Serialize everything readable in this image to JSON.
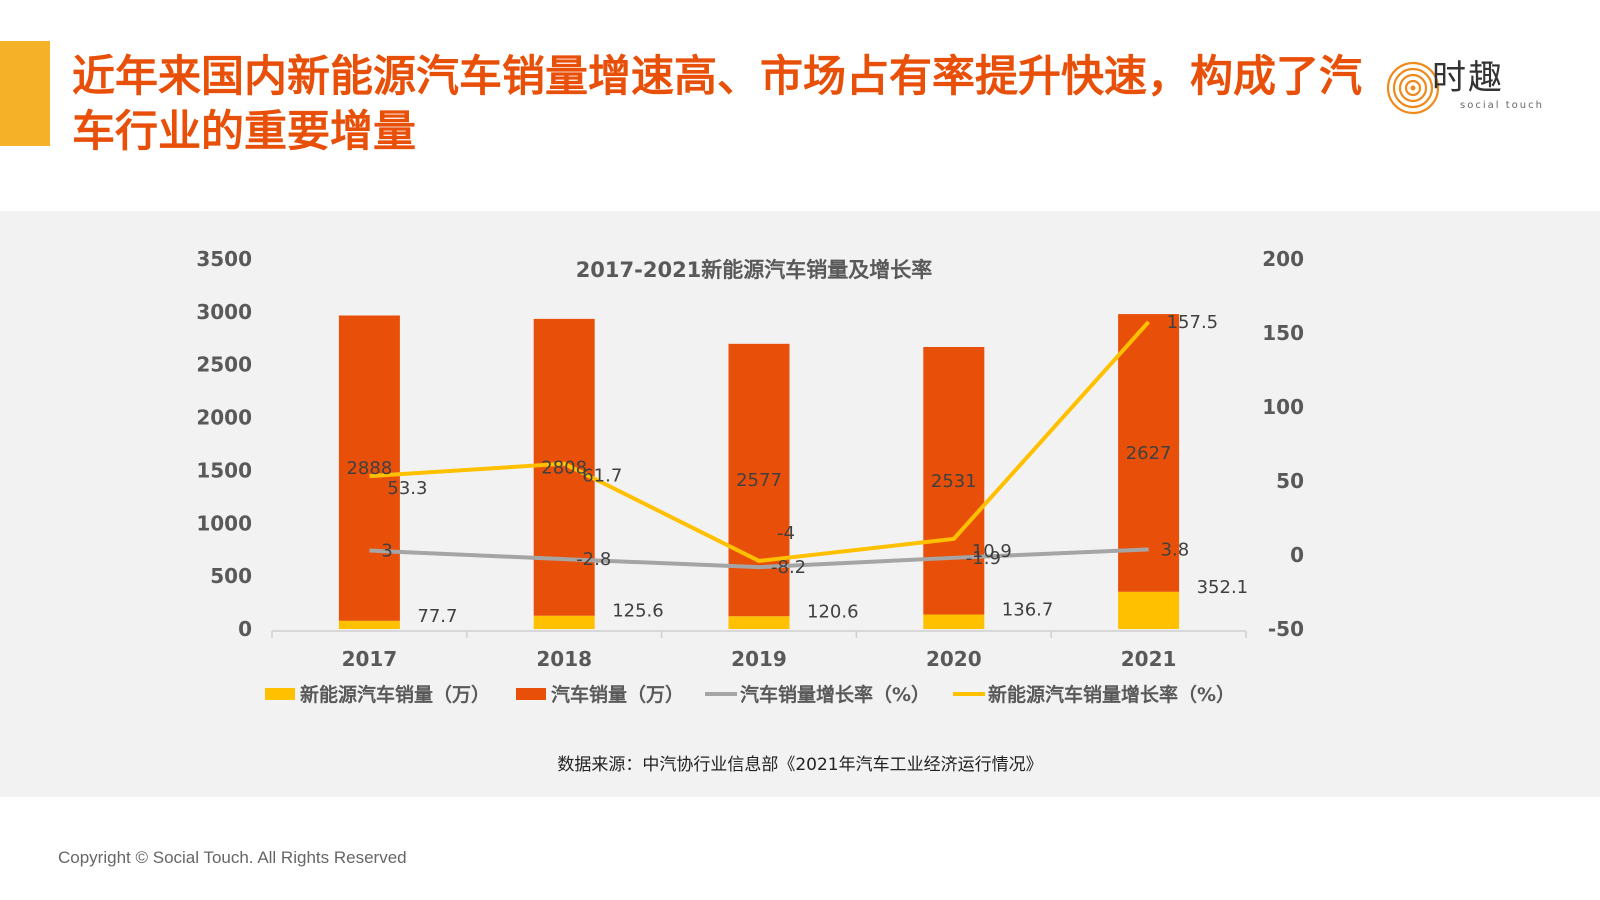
{
  "header": {
    "title": "近年来国内新能源汽车销量增速高、市场占有率提升快速，构成了汽车行业的重要增量"
  },
  "logo": {
    "text": "时趣",
    "subtext": "social touch",
    "icon": "concentric-circle-logo-icon"
  },
  "colors": {
    "accent_bar": "#f5b228",
    "title": "#e8500a",
    "nev_sales": "#ffc000",
    "car_sales": "#e8500a",
    "car_growth": "#a5a5a5",
    "nev_growth": "#ffc000",
    "panel_bg": "#f2f2f2"
  },
  "chart_data": {
    "type": "bar",
    "title": "2017-2021新能源汽车销量及增长率",
    "categories": [
      "2017",
      "2018",
      "2019",
      "2020",
      "2021"
    ],
    "stacked": true,
    "series": [
      {
        "name": "新能源汽车销量（万）",
        "type": "bar",
        "axis": "left",
        "values": [
          77.7,
          125.6,
          120.6,
          136.7,
          352.1
        ]
      },
      {
        "name": "汽车销量（万）",
        "type": "bar",
        "axis": "left",
        "values": [
          2888,
          2808,
          2577,
          2531,
          2627
        ]
      },
      {
        "name": "汽车销量增长率（%）",
        "type": "line",
        "axis": "right",
        "values": [
          3,
          -2.8,
          -8.2,
          -1.9,
          3.8
        ]
      },
      {
        "name": "新能源汽车销量增长率（%）",
        "type": "line",
        "axis": "right",
        "values": [
          53.3,
          61.7,
          -4,
          10.9,
          157.5
        ]
      }
    ],
    "y_left": {
      "min": 0,
      "max": 3500,
      "ticks": [
        0,
        500,
        1000,
        1500,
        2000,
        2500,
        3000,
        3500
      ]
    },
    "y_right": {
      "min": -50,
      "max": 200,
      "ticks": [
        -50,
        0,
        50,
        100,
        150,
        200
      ]
    },
    "grid": false,
    "legend": "bottom"
  },
  "source": "数据来源：中汽协行业信息部《2021年汽车工业经济运行情况》",
  "footer": {
    "copyright": "Copyright © Social Touch. All Rights Reserved"
  }
}
